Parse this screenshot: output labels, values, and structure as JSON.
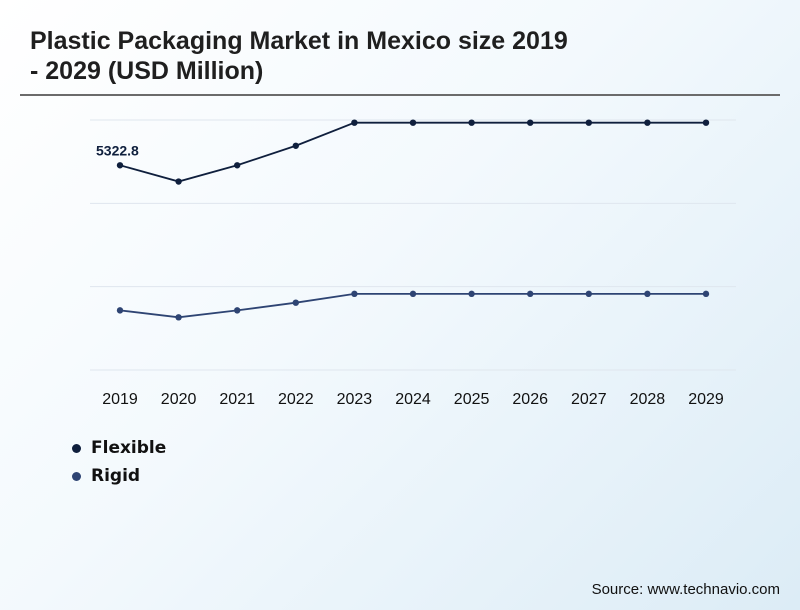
{
  "header": {
    "title_line1": "Plastic Packaging Market in Mexico size 2019",
    "title_line2": "- 2029 (USD Million)"
  },
  "footer": {
    "source": "Source: www.technavio.com"
  },
  "chart_data": {
    "type": "line",
    "title": "Plastic Packaging Market in Mexico size 2019 - 2029 (USD Million)",
    "categories": [
      "2019",
      "2020",
      "2021",
      "2022",
      "2023",
      "2024",
      "2025",
      "2026",
      "2027",
      "2028",
      "2029"
    ],
    "series": [
      {
        "name": "Flexible",
        "color": "#0f1f3d",
        "values": [
          5322.8,
          4900,
          5322.8,
          5830,
          6430,
          6430,
          6430,
          6430,
          6430,
          6430,
          6430
        ]
      },
      {
        "name": "Rigid",
        "color": "#2e4473",
        "values": [
          1550,
          1370,
          1550,
          1750,
          1980,
          1980,
          1980,
          1980,
          1980,
          1980,
          1980
        ]
      }
    ],
    "data_labels": [
      {
        "series": "Flexible",
        "category": "2019",
        "text": "5322.8"
      }
    ],
    "ylim": [
      0,
      6500
    ],
    "yticks_shown": false,
    "grid": "horizontal",
    "legend_position": "bottom-left"
  }
}
